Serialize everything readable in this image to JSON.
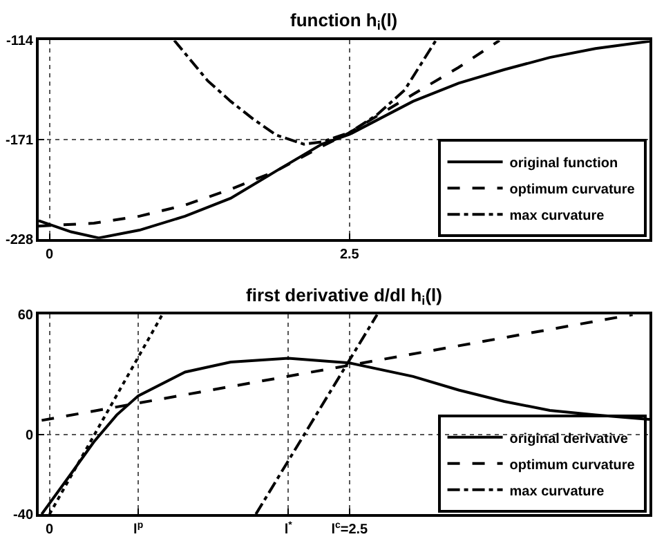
{
  "chart_data": [
    {
      "type": "line",
      "title": "function h$_{i}$(l)",
      "xlim": [
        -0.09,
        5.0
      ],
      "ylim": [
        -228,
        -114
      ],
      "xticks": [
        0,
        2.5
      ],
      "yticks": [
        -228,
        -171,
        -114
      ],
      "grid": true,
      "legend": "bottom right",
      "series": [
        {
          "name": "original function",
          "color": "#000000",
          "line_style": "solid",
          "x": [
            -0.09,
            0.18,
            0.41,
            0.75,
            1.13,
            1.51,
            1.89,
            2.27,
            2.5,
            3.03,
            3.41,
            3.79,
            4.17,
            4.55,
            5.0
          ],
          "values": [
            -217.6,
            -224,
            -227.5,
            -223,
            -215,
            -204.7,
            -189,
            -173.6,
            -168,
            -149,
            -138.6,
            -130.8,
            -123.8,
            -118.7,
            -114.5
          ]
        },
        {
          "name": "optimum curvature",
          "color": "#000000",
          "line_style": "dashed",
          "x": [
            -0.09,
            0.37,
            0.75,
            1.13,
            1.51,
            1.89,
            2.27,
            2.5,
            3.03,
            3.41,
            3.75
          ],
          "values": [
            -220.7,
            -219,
            -215,
            -208.6,
            -199.5,
            -189,
            -174.9,
            -167,
            -145,
            -129.5,
            -114
          ]
        },
        {
          "name": "max curvature",
          "color": "#000000",
          "line_style": "dashdot",
          "x": [
            1.04,
            1.32,
            1.51,
            1.7,
            1.89,
            2.12,
            2.27,
            2.5,
            2.73,
            2.96,
            3.22
          ],
          "values": [
            -114,
            -137.3,
            -149,
            -159.3,
            -168.4,
            -173.6,
            -172.3,
            -167,
            -156.7,
            -142.5,
            -114
          ]
        }
      ]
    },
    {
      "type": "line",
      "title": "first derivative d/dl h$_{i}$(l)",
      "xlim": [
        -0.09,
        5.0
      ],
      "ylim": [
        -40,
        60
      ],
      "xticks": [
        0,
        {
          "value": 0.74,
          "label": "l$^{p}$"
        },
        {
          "value": 1.99,
          "label": "l$^{*}$"
        },
        {
          "value": 2.5,
          "label": "l$^{c}$=2.5"
        }
      ],
      "yticks": [
        -40,
        0,
        60
      ],
      "grid": true,
      "legend": "bottom right",
      "series": [
        {
          "name": "original derivative",
          "color": "#000000",
          "line_style": "solid",
          "x": [
            -0.065,
            0.18,
            0.37,
            0.56,
            0.74,
            1.13,
            1.51,
            1.99,
            2.5,
            3.03,
            3.41,
            3.79,
            4.17,
            4.55,
            5.0
          ],
          "values": [
            -40,
            -19.7,
            -3.8,
            9.7,
            19.3,
            31.2,
            36.2,
            38.1,
            35.8,
            29,
            22.2,
            16.5,
            12,
            9.7,
            7.5
          ]
        },
        {
          "name": "optimum curvature",
          "color": "#000000",
          "line_style": "dashed",
          "x": [
            -0.065,
            4.86
          ],
          "values": [
            7,
            60
          ]
        },
        {
          "name": "max curvature",
          "color": "#000000",
          "line_style": "dashdot",
          "x": [
            1.72,
            2.73
          ],
          "values": [
            -40,
            60
          ]
        },
        {
          "color": "#000000",
          "line_style": "dotted",
          "x": [
            0.0,
            0.94
          ],
          "values": [
            -40,
            60
          ]
        }
      ]
    }
  ]
}
